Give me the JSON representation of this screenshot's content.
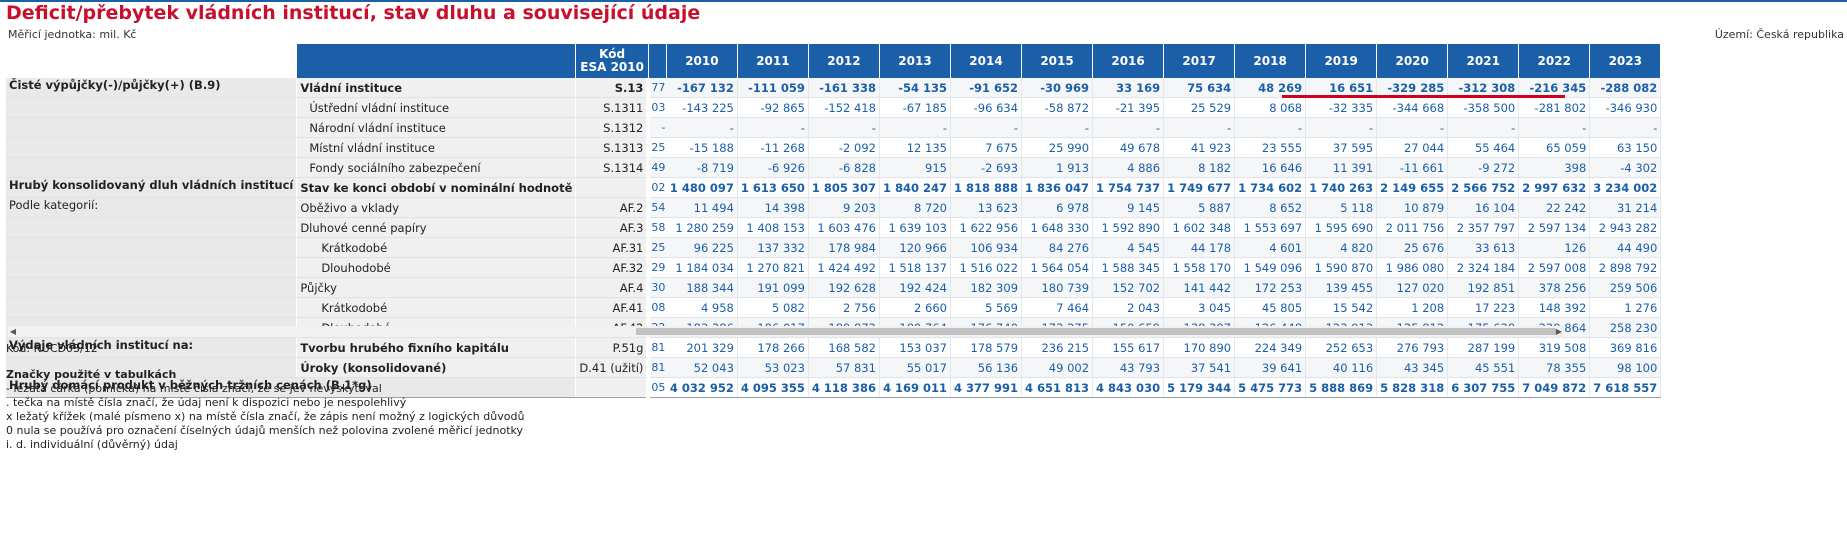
{
  "title": "Deficit/přebytek vládních institucí, stav dluhu a související údaje",
  "unit": "Měřicí jednotka: mil. Kč",
  "territory": "Území: Česká republika",
  "header": {
    "code_line1": "Kód",
    "code_line2": "ESA 2010",
    "years": [
      "2010",
      "2011",
      "2012",
      "2013",
      "2014",
      "2015",
      "2016",
      "2017",
      "2018",
      "2019",
      "2020",
      "2021",
      "2022",
      "2023"
    ]
  },
  "rows": [
    {
      "group": "Čisté výpůjčky(-)/půjčky(+) (B.9)",
      "indicator": "Vládní instituce",
      "code": "S.13",
      "peek": "77",
      "values": [
        "-167 132",
        "-111 059",
        "-161 338",
        "-54 135",
        "-91 652",
        "-30 969",
        "33 169",
        "75 634",
        "48 269",
        "16 651",
        "-329 285",
        "-312 308",
        "-216 345",
        "-288 082"
      ]
    },
    {
      "group": "",
      "indicator": "Ústřední vládní instituce",
      "code": "S.1311",
      "peek": "03",
      "values": [
        "-143 225",
        "-92 865",
        "-152 418",
        "-67 185",
        "-96 634",
        "-58 872",
        "-21 395",
        "25 529",
        "8 068",
        "-32 335",
        "-344 668",
        "-358 500",
        "-281 802",
        "-346 930"
      ]
    },
    {
      "group": "",
      "indicator": "Národní vládní instituce",
      "code": "S.1312",
      "peek": "-",
      "values": [
        "-",
        "-",
        "-",
        "-",
        "-",
        "-",
        "-",
        "-",
        "-",
        "-",
        "-",
        "-",
        "-",
        "-"
      ]
    },
    {
      "group": "",
      "indicator": "Místní vládní instituce",
      "code": "S.1313",
      "peek": "25",
      "values": [
        "-15 188",
        "-11 268",
        "-2 092",
        "12 135",
        "7 675",
        "25 990",
        "49 678",
        "41 923",
        "23 555",
        "37 595",
        "27 044",
        "55 464",
        "65 059",
        "63 150"
      ]
    },
    {
      "group": "",
      "indicator": "Fondy sociálního zabezpečení",
      "code": "S.1314",
      "peek": "49",
      "values": [
        "-8 719",
        "-6 926",
        "-6 828",
        "915",
        "-2 693",
        "1 913",
        "4 886",
        "8 182",
        "16 646",
        "11 391",
        "-11 661",
        "-9 272",
        "398",
        "-4 302"
      ]
    },
    {
      "group": "Hrubý konsolidovaný dluh vládních institucí",
      "indicator": "Stav ke konci období v nominální hodnotě",
      "code": "",
      "peek": "02",
      "values": [
        "1 480 097",
        "1 613 650",
        "1 805 307",
        "1 840 247",
        "1 818 888",
        "1 836 047",
        "1 754 737",
        "1 749 677",
        "1 734 602",
        "1 740 263",
        "2 149 655",
        "2 566 752",
        "2 997 632",
        "3 234 002"
      ]
    },
    {
      "group": "Podle kategorií:",
      "indicator": "Oběživo a vklady",
      "code": "AF.2",
      "peek": "54",
      "values": [
        "11 494",
        "14 398",
        "9 203",
        "8 720",
        "13 623",
        "6 978",
        "9 145",
        "5 887",
        "8 652",
        "5 118",
        "10 879",
        "16 104",
        "22 242",
        "31 214"
      ]
    },
    {
      "group": "",
      "indicator": "Dluhové cenné papíry",
      "code": "AF.3",
      "peek": "58",
      "values": [
        "1 280 259",
        "1 408 153",
        "1 603 476",
        "1 639 103",
        "1 622 956",
        "1 648 330",
        "1 592 890",
        "1 602 348",
        "1 553 697",
        "1 595 690",
        "2 011 756",
        "2 357 797",
        "2 597 134",
        "2 943 282"
      ]
    },
    {
      "group": "",
      "indicator": "Krátkodobé",
      "code": "AF.31",
      "peek": "25",
      "values": [
        "96 225",
        "137 332",
        "178 984",
        "120 966",
        "106 934",
        "84 276",
        "4 545",
        "44 178",
        "4 601",
        "4 820",
        "25 676",
        "33 613",
        "126",
        "44 490"
      ]
    },
    {
      "group": "",
      "indicator": "Dlouhodobé",
      "code": "AF.32",
      "peek": "29",
      "values": [
        "1 184 034",
        "1 270 821",
        "1 424 492",
        "1 518 137",
        "1 516 022",
        "1 564 054",
        "1 588 345",
        "1 558 170",
        "1 549 096",
        "1 590 870",
        "1 986 080",
        "2 324 184",
        "2 597 008",
        "2 898 792"
      ]
    },
    {
      "group": "",
      "indicator": "Půjčky",
      "code": "AF.4",
      "peek": "30",
      "values": [
        "188 344",
        "191 099",
        "192 628",
        "192 424",
        "182 309",
        "180 739",
        "152 702",
        "141 442",
        "172 253",
        "139 455",
        "127 020",
        "192 851",
        "378 256",
        "259 506"
      ]
    },
    {
      "group": "",
      "indicator": "Krátkodobé",
      "code": "AF.41",
      "peek": "08",
      "values": [
        "4 958",
        "5 082",
        "2 756",
        "2 660",
        "5 569",
        "7 464",
        "2 043",
        "3 045",
        "45 805",
        "15 542",
        "1 208",
        "17 223",
        "148 392",
        "1 276"
      ]
    },
    {
      "group": "",
      "indicator": "Dlouhodobé",
      "code": "AF.42",
      "peek": "22",
      "values": [
        "183 386",
        "186 017",
        "189 872",
        "189 764",
        "176 740",
        "173 275",
        "150 659",
        "138 397",
        "126 448",
        "123 913",
        "125 812",
        "175 628",
        "229 864",
        "258 230"
      ]
    },
    {
      "group": "Výdaje vládních institucí na:",
      "indicator": "Tvorbu hrubého fixního kapitálu",
      "code": "P.51g",
      "peek": "81",
      "values": [
        "201 329",
        "178 266",
        "168 582",
        "153 037",
        "178 579",
        "236 215",
        "155 617",
        "170 890",
        "224 349",
        "252 653",
        "276 793",
        "287 199",
        "319 508",
        "369 816"
      ]
    },
    {
      "group": "",
      "indicator": "Úroky (konsolidované)",
      "code": "D.41 (užití)",
      "peek": "81",
      "values": [
        "52 043",
        "53 023",
        "57 831",
        "55 017",
        "56 136",
        "49 002",
        "43 793",
        "37 541",
        "39 641",
        "40 116",
        "43 345",
        "45 551",
        "78 355",
        "98 100"
      ]
    },
    {
      "group": "Hrubý domácí produkt v běžných tržních cenách (B.1*g)",
      "indicator": "",
      "code": "",
      "peek": "05",
      "values": [
        "4 032 952",
        "4 095 355",
        "4 118 386",
        "4 169 011",
        "4 377 991",
        "4 651 813",
        "4 843 030",
        "5 179 344",
        "5 475 773",
        "5 888 869",
        "5 828 318",
        "6 307 755",
        "7 049 872",
        "7 618 557"
      ]
    }
  ],
  "scrollbar": {
    "left_arrow": "◀",
    "right_arrow": "▶"
  },
  "footer": {
    "code": "Kód: NUCD03/12",
    "legend_title": "Značky použité v tabulkách",
    "legend": [
      "- ležatá čárka (pomlčka) na místě čísla značí, že se jev nevyskytoval",
      ". tečka na místě čísla značí, že údaj není k dispozici nebo je nespolehlivý",
      "x ležatý křížek (malé písmeno x) na místě čísla značí, že zápis není možný z logických důvodů",
      "0 nula se používá pro označení číselných údajů menších než polovina zvolené měřicí jednotky",
      "i. d. individuální (důvěrný) údaj"
    ]
  }
}
